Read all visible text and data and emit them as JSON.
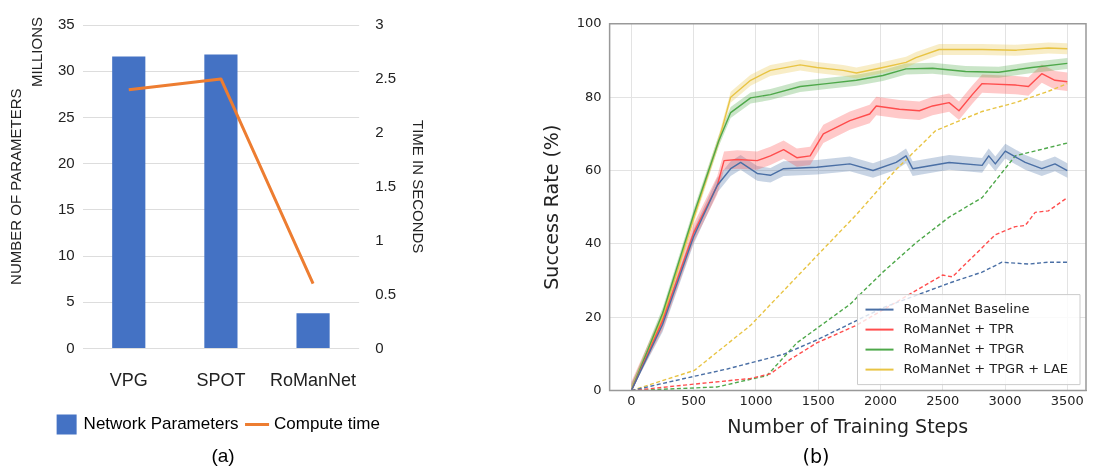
{
  "chart_data": [
    {
      "type": "bar",
      "categories": [
        "VPG",
        "SPOT",
        "RoManNet"
      ],
      "ylabel": "NUMBER OF PARAMETERS",
      "y2label": "TIME IN SECONDS",
      "ylim": [
        0,
        35
      ],
      "yticks": [
        0,
        5,
        10,
        15,
        20,
        25,
        30,
        35
      ],
      "y2lim": [
        0,
        3
      ],
      "y2ticks": [
        0,
        0.5,
        1,
        1.5,
        2,
        2.5,
        3
      ],
      "grid": "y",
      "legend": "bottom",
      "marker": "none",
      "annotations": [
        "MILLIONS",
        "(a)"
      ],
      "series": [
        {
          "name": "Network Parameters",
          "type": "bar",
          "color": "#4472c4",
          "values": [
            31.6,
            31.8,
            3.8
          ]
        },
        {
          "name": "Compute time",
          "type": "line",
          "axis": "y2",
          "color": "#ed7d31",
          "values": [
            2.4,
            2.5,
            0.6
          ]
        }
      ]
    },
    {
      "type": "line",
      "xlabel": "Number of Training Steps",
      "ylabel": "Success Rate (%)",
      "xlim": [
        -175,
        3650
      ],
      "xticks": [
        0,
        500,
        1000,
        1500,
        2000,
        2500,
        3000,
        3500
      ],
      "ylim": [
        0,
        100
      ],
      "yticks": [
        0,
        20,
        40,
        60,
        80,
        100
      ],
      "grid": true,
      "legend": "bottom right",
      "marker": "none",
      "annotations": [
        "(b)"
      ],
      "series": [
        {
          "name": "RoManNet Baseline",
          "color": "#4a6fa5",
          "line_style": "solid",
          "x": [
            0,
            250,
            500,
            690,
            797,
            877,
            1010,
            1116,
            1222,
            1488,
            1754,
            1940,
            2126,
            2205,
            2258,
            2551,
            2816,
            2869,
            2922,
            3002,
            3162,
            3295,
            3401,
            3500
          ],
          "values": [
            0,
            18,
            42,
            56,
            60.5,
            62.2,
            59.2,
            58.7,
            60.5,
            60.9,
            61.8,
            60,
            62.2,
            64,
            60.5,
            62.2,
            61.4,
            64,
            61.8,
            65.3,
            62.2,
            60.5,
            61.8,
            60
          ],
          "lower": [
            0,
            16,
            40,
            54,
            58.5,
            60.2,
            57.2,
            56.7,
            58.5,
            58.9,
            59.8,
            58,
            60.2,
            62,
            58.5,
            60.2,
            59.4,
            62,
            59.8,
            63.3,
            60.2,
            58.5,
            59.8,
            58
          ],
          "upper": [
            2,
            20,
            44,
            58,
            62.5,
            64.2,
            61.2,
            60.7,
            62.5,
            62.9,
            63.8,
            62,
            64.2,
            66,
            62.5,
            64.2,
            63.4,
            66,
            63.8,
            67.3,
            64.2,
            62.5,
            63.8,
            62
          ]
        },
        {
          "name": "RoManNet + TPR",
          "color": "#ff4d4d",
          "line_style": "solid",
          "x": [
            0,
            250,
            500,
            690,
            744,
            850,
            1010,
            1116,
            1222,
            1328,
            1435,
            1541,
            1754,
            1913,
            1966,
            2152,
            2312,
            2418,
            2551,
            2630,
            2737,
            2816,
            3082,
            3188,
            3295,
            3401,
            3500
          ],
          "values": [
            0,
            19,
            43,
            56,
            62.7,
            63,
            62.7,
            64,
            65.7,
            63.5,
            64,
            70,
            73.6,
            75.4,
            77.6,
            76.7,
            76.3,
            77.6,
            78.5,
            76.3,
            80.7,
            83.7,
            83.3,
            82.9,
            86.4,
            84.6,
            84.2
          ],
          "lower": [
            0,
            16.5,
            40.5,
            53.5,
            60.2,
            60.5,
            60.2,
            61.5,
            63.2,
            61,
            61.5,
            67.5,
            71.1,
            72.9,
            75.1,
            74.2,
            73.8,
            75.1,
            76,
            73.8,
            78.2,
            81.2,
            80.8,
            80.4,
            83.9,
            82.1,
            81.7
          ],
          "upper": [
            2.5,
            21.5,
            45.5,
            58.5,
            65.2,
            65.5,
            65.2,
            66.5,
            68.2,
            66,
            66.5,
            72.5,
            76.1,
            77.9,
            80.1,
            79.2,
            78.8,
            80.1,
            81,
            78.8,
            83.2,
            86.2,
            85.8,
            85.4,
            88.9,
            87.1,
            86.7
          ]
        },
        {
          "name": "RoManNet + TPGR",
          "color": "#4ea84a",
          "line_style": "solid",
          "x": [
            0,
            250,
            500,
            700,
            797,
            957,
            1116,
            1355,
            1568,
            1807,
            2019,
            2205,
            2418,
            2683,
            2949,
            3215,
            3500
          ],
          "values": [
            0,
            21,
            48,
            68,
            75.8,
            79.8,
            80.7,
            82.9,
            83.7,
            84.6,
            85.9,
            87.7,
            87.9,
            87,
            86.8,
            88.1,
            89.2
          ],
          "lower": [
            0,
            19.5,
            46.5,
            66.5,
            74.3,
            78.3,
            79.2,
            81.4,
            82.2,
            83.1,
            84.4,
            86.2,
            86.4,
            85.5,
            85.3,
            86.6,
            87.7
          ],
          "upper": [
            1.5,
            22.5,
            49.5,
            69.5,
            77.3,
            81.3,
            82.2,
            84.4,
            85.2,
            86.1,
            87.4,
            89.2,
            89.4,
            88.5,
            88.3,
            89.6,
            90.7
          ]
        },
        {
          "name": "RoManNet + TPGR + LAE",
          "color": "#e8c444",
          "line_style": "solid",
          "x": [
            0,
            250,
            500,
            700,
            797,
            957,
            1116,
            1355,
            1488,
            1700,
            1807,
            2019,
            2205,
            2285,
            2471,
            2816,
            3082,
            3348,
            3500
          ],
          "values": [
            0,
            20,
            47,
            68,
            80,
            84.6,
            87.3,
            88.8,
            88.1,
            87.3,
            86.6,
            88.1,
            89.5,
            90.8,
            93,
            93,
            92.8,
            93.4,
            93.2
          ],
          "lower": [
            0,
            18.5,
            45.5,
            66.5,
            78.5,
            83.1,
            85.8,
            87.3,
            86.6,
            85.8,
            85.1,
            86.6,
            88,
            89.3,
            91.5,
            91.5,
            91.3,
            91.9,
            91.7
          ],
          "upper": [
            1.5,
            21.5,
            48.5,
            69.5,
            81.5,
            86.1,
            88.8,
            90.3,
            89.6,
            88.8,
            88.1,
            89.6,
            91,
            92.3,
            94.5,
            94.5,
            94.3,
            94.9,
            94.7
          ]
        },
        {
          "color": "#4a6fa5",
          "line_style": "dashed",
          "x": [
            0,
            425,
            770,
            1222,
            1488,
            2019,
            2551,
            2816,
            2975,
            3188,
            3348,
            3500
          ],
          "values": [
            0,
            3.3,
            5.9,
            9.9,
            13.8,
            22.6,
            29.3,
            32.3,
            35,
            34.5,
            35,
            35
          ]
        },
        {
          "color": "#ff4d4d",
          "line_style": "dashed",
          "x": [
            0,
            425,
            957,
            1116,
            1275,
            1488,
            1807,
            2498,
            2577,
            2922,
            3082,
            3162,
            3242,
            3348,
            3500
          ],
          "values": [
            0,
            1.5,
            3.3,
            4.6,
            8.5,
            13,
            17.8,
            31.5,
            31,
            42.5,
            44.7,
            45,
            48.6,
            49,
            52.6
          ]
        },
        {
          "color": "#4ea84a",
          "line_style": "dashed",
          "x": [
            0,
            690,
            983,
            1089,
            1328,
            1754,
            2019,
            2285,
            2551,
            2816,
            3082,
            3500
          ],
          "values": [
            0,
            1,
            3.3,
            4.1,
            13,
            23.5,
            32.3,
            40.3,
            47.3,
            52.6,
            64,
            67.5
          ]
        },
        {
          "color": "#e8c444",
          "line_style": "dashed",
          "x": [
            0,
            505,
            957,
            1488,
            1807,
            2126,
            2444,
            2816,
            3082,
            3348,
            3500
          ],
          "values": [
            0,
            5.5,
            17.8,
            36.7,
            48,
            60.3,
            70.9,
            76.1,
            78.5,
            81.6,
            83.7
          ]
        }
      ]
    }
  ]
}
